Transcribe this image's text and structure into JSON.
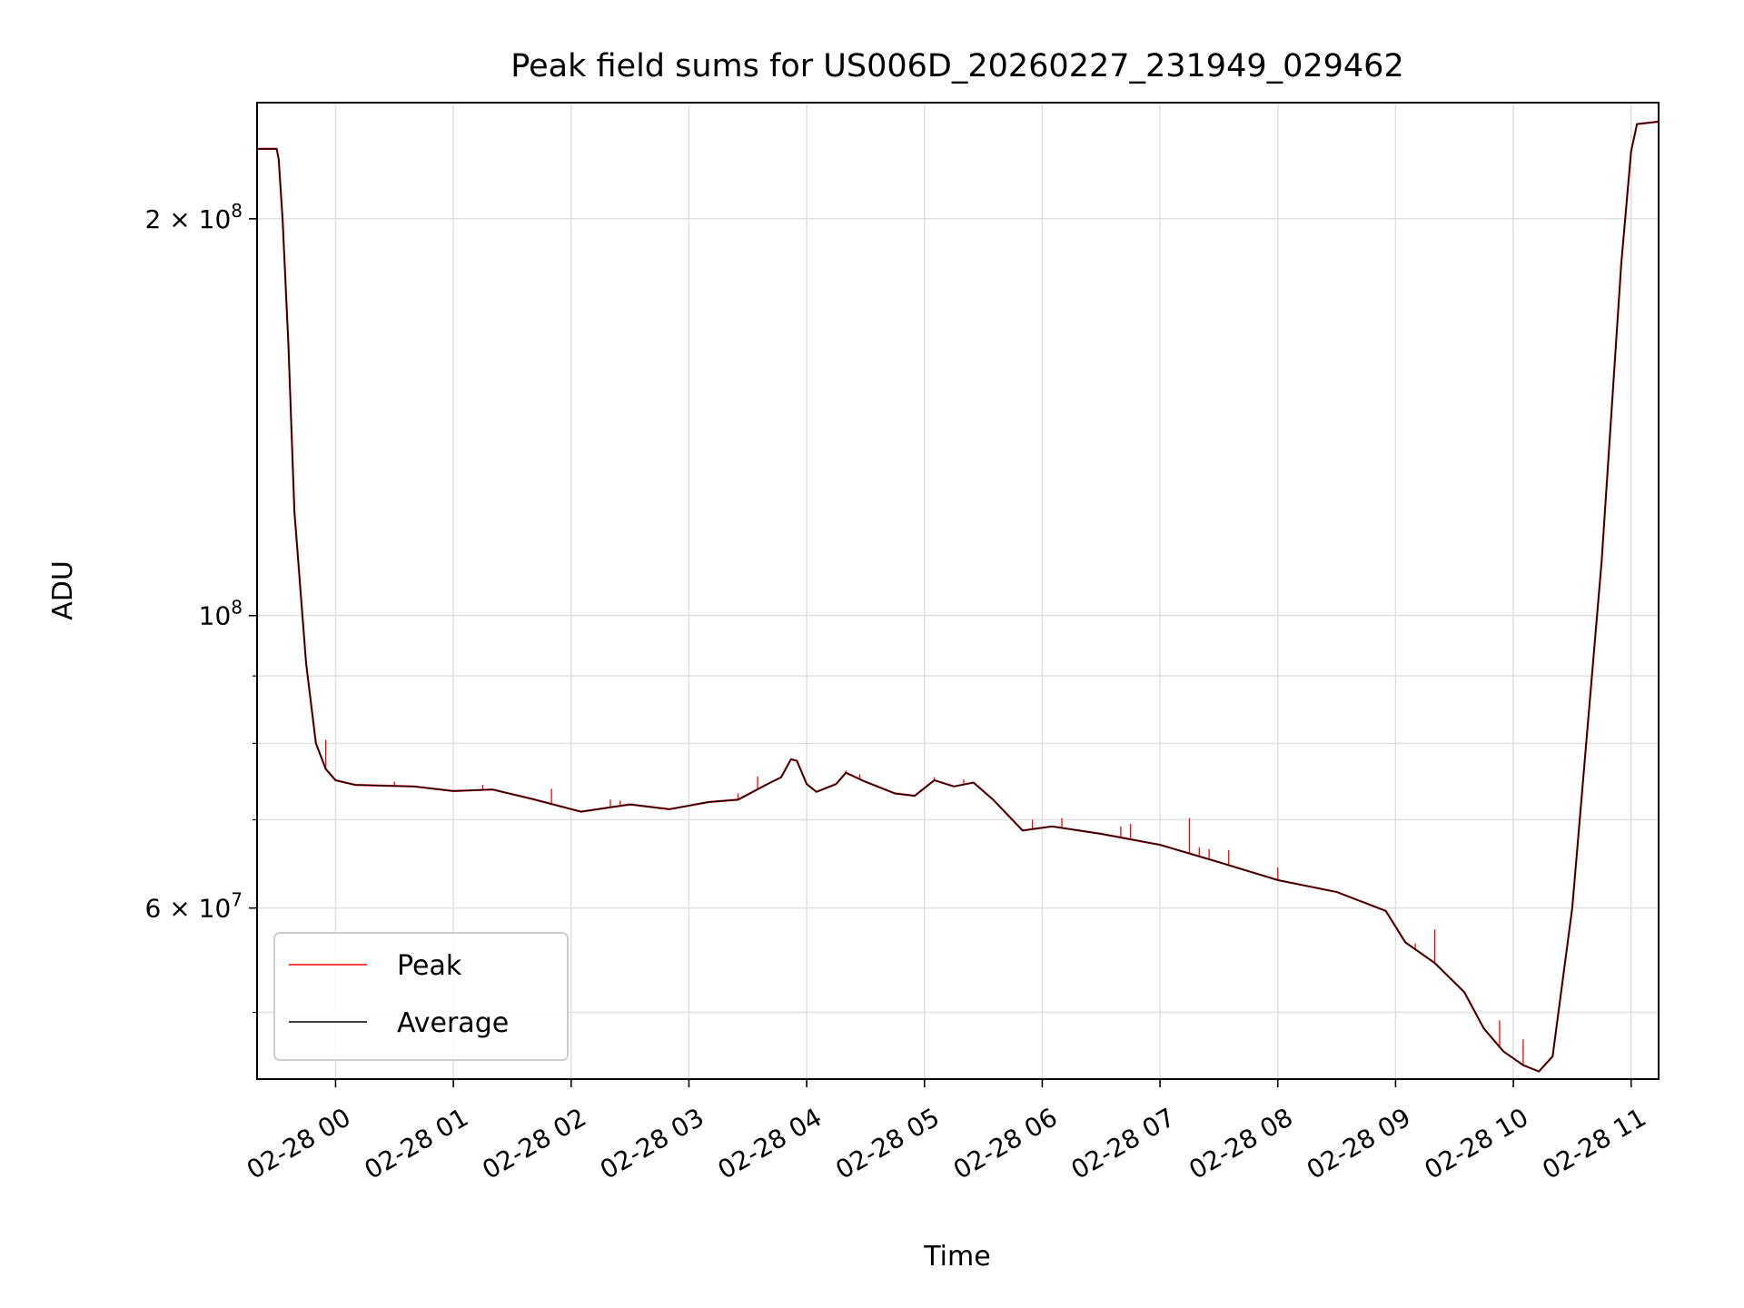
{
  "chart_data": {
    "type": "line",
    "title": "Peak field sums for US006D_20260227_231949_029462",
    "xlabel": "Time",
    "ylabel": "ADU",
    "y_scale": "log",
    "ylim": [
      44500000,
      245000000
    ],
    "xlim": [
      "2026-02-27 23:20",
      "2026-02-28 11:14"
    ],
    "grid": true,
    "legend_position": "lower-left",
    "colors": {
      "peak": "#ff0000",
      "average": "#000000",
      "grid": "#e0e0e0"
    },
    "x_ticks": [
      {
        "label": "02-28 00",
        "value": "2026-02-28 00:00"
      },
      {
        "label": "02-28 01",
        "value": "2026-02-28 01:00"
      },
      {
        "label": "02-28 02",
        "value": "2026-02-28 02:00"
      },
      {
        "label": "02-28 03",
        "value": "2026-02-28 03:00"
      },
      {
        "label": "02-28 04",
        "value": "2026-02-28 04:00"
      },
      {
        "label": "02-28 05",
        "value": "2026-02-28 05:00"
      },
      {
        "label": "02-28 06",
        "value": "2026-02-28 06:00"
      },
      {
        "label": "02-28 07",
        "value": "2026-02-28 07:00"
      },
      {
        "label": "02-28 08",
        "value": "2026-02-28 08:00"
      },
      {
        "label": "02-28 09",
        "value": "2026-02-28 09:00"
      },
      {
        "label": "02-28 10",
        "value": "2026-02-28 10:00"
      },
      {
        "label": "02-28 11",
        "value": "2026-02-28 11:00"
      }
    ],
    "y_ticks": [
      {
        "label": "6×10⁷",
        "mantissa": "6",
        "exponent": "7",
        "value": 60000000
      },
      {
        "label": "10⁸",
        "mantissa": "",
        "exponent": "8",
        "value": 100000000
      },
      {
        "label": "2×10⁸",
        "mantissa": "2",
        "exponent": "8",
        "value": 200000000
      }
    ],
    "y_minor_ticks": [
      50000000,
      70000000,
      80000000,
      90000000,
      300000000
    ],
    "series": [
      {
        "name": "Average",
        "color": "#000000",
        "points": [
          [
            "2026-02-27 23:20",
            226000000
          ],
          [
            "2026-02-27 23:30",
            226000000
          ],
          [
            "2026-02-27 23:31",
            222000000
          ],
          [
            "2026-02-27 23:33",
            200000000
          ],
          [
            "2026-02-27 23:36",
            160000000
          ],
          [
            "2026-02-27 23:39",
            120000000
          ],
          [
            "2026-02-27 23:45",
            92000000
          ],
          [
            "2026-02-27 23:50",
            80000000
          ],
          [
            "2026-02-27 23:55",
            76500000
          ],
          [
            "2026-02-28 00:00",
            75000000
          ],
          [
            "2026-02-28 00:10",
            74400000
          ],
          [
            "2026-02-28 00:40",
            74200000
          ],
          [
            "2026-02-28 01:00",
            73600000
          ],
          [
            "2026-02-28 01:20",
            73800000
          ],
          [
            "2026-02-28 01:40",
            72600000
          ],
          [
            "2026-02-28 02:05",
            71000000
          ],
          [
            "2026-02-28 02:30",
            71900000
          ],
          [
            "2026-02-28 02:50",
            71300000
          ],
          [
            "2026-02-28 03:10",
            72200000
          ],
          [
            "2026-02-28 03:25",
            72500000
          ],
          [
            "2026-02-28 03:40",
            74500000
          ],
          [
            "2026-02-28 03:47",
            75400000
          ],
          [
            "2026-02-28 03:52",
            77800000
          ],
          [
            "2026-02-28 03:55",
            77600000
          ],
          [
            "2026-02-28 04:00",
            74500000
          ],
          [
            "2026-02-28 04:05",
            73500000
          ],
          [
            "2026-02-28 04:15",
            74500000
          ],
          [
            "2026-02-28 04:20",
            76000000
          ],
          [
            "2026-02-28 04:30",
            74800000
          ],
          [
            "2026-02-28 04:45",
            73300000
          ],
          [
            "2026-02-28 04:55",
            73000000
          ],
          [
            "2026-02-28 05:05",
            75000000
          ],
          [
            "2026-02-28 05:15",
            74200000
          ],
          [
            "2026-02-28 05:25",
            74700000
          ],
          [
            "2026-02-28 05:35",
            72500000
          ],
          [
            "2026-02-28 05:50",
            68700000
          ],
          [
            "2026-02-28 06:05",
            69200000
          ],
          [
            "2026-02-28 06:30",
            68300000
          ],
          [
            "2026-02-28 07:00",
            67000000
          ],
          [
            "2026-02-28 07:30",
            65000000
          ],
          [
            "2026-02-28 08:00",
            63000000
          ],
          [
            "2026-02-28 08:30",
            61700000
          ],
          [
            "2026-02-28 08:55",
            59700000
          ],
          [
            "2026-02-28 09:05",
            56500000
          ],
          [
            "2026-02-28 09:20",
            54500000
          ],
          [
            "2026-02-28 09:35",
            51800000
          ],
          [
            "2026-02-28 09:45",
            48600000
          ],
          [
            "2026-02-28 09:55",
            46700000
          ],
          [
            "2026-02-28 10:05",
            45600000
          ],
          [
            "2026-02-28 10:13",
            45100000
          ],
          [
            "2026-02-28 10:20",
            46300000
          ],
          [
            "2026-02-28 10:30",
            60000000
          ],
          [
            "2026-02-28 10:45",
            110000000
          ],
          [
            "2026-02-28 10:55",
            185000000
          ],
          [
            "2026-02-28 11:00",
            225000000
          ],
          [
            "2026-02-28 11:03",
            236000000
          ],
          [
            "2026-02-28 11:14",
            237000000
          ]
        ]
      },
      {
        "name": "Peak",
        "color": "#ff0000",
        "spikes": [
          [
            "2026-02-27 23:55",
            80500000
          ],
          [
            "2026-02-28 00:30",
            74800000
          ],
          [
            "2026-02-28 01:15",
            74400000
          ],
          [
            "2026-02-28 01:50",
            73900000
          ],
          [
            "2026-02-28 02:20",
            72500000
          ],
          [
            "2026-02-28 02:25",
            72400000
          ],
          [
            "2026-02-28 03:25",
            73300000
          ],
          [
            "2026-02-28 03:35",
            75500000
          ],
          [
            "2026-02-28 04:20",
            76300000
          ],
          [
            "2026-02-28 04:27",
            75800000
          ],
          [
            "2026-02-28 05:05",
            75400000
          ],
          [
            "2026-02-28 05:20",
            75100000
          ],
          [
            "2026-02-28 05:55",
            70000000
          ],
          [
            "2026-02-28 06:10",
            70200000
          ],
          [
            "2026-02-28 06:40",
            69200000
          ],
          [
            "2026-02-28 06:45",
            69500000
          ],
          [
            "2026-02-28 07:15",
            70200000
          ],
          [
            "2026-02-28 07:20",
            66700000
          ],
          [
            "2026-02-28 07:25",
            66500000
          ],
          [
            "2026-02-28 07:35",
            66400000
          ],
          [
            "2026-02-28 08:00",
            64400000
          ],
          [
            "2026-02-28 09:10",
            56400000
          ],
          [
            "2026-02-28 09:20",
            57800000
          ],
          [
            "2026-02-28 09:53",
            49300000
          ],
          [
            "2026-02-28 10:05",
            47700000
          ]
        ]
      }
    ],
    "legend": [
      {
        "label": "Peak",
        "color": "#ff0000"
      },
      {
        "label": "Average",
        "color": "#000000"
      }
    ]
  }
}
